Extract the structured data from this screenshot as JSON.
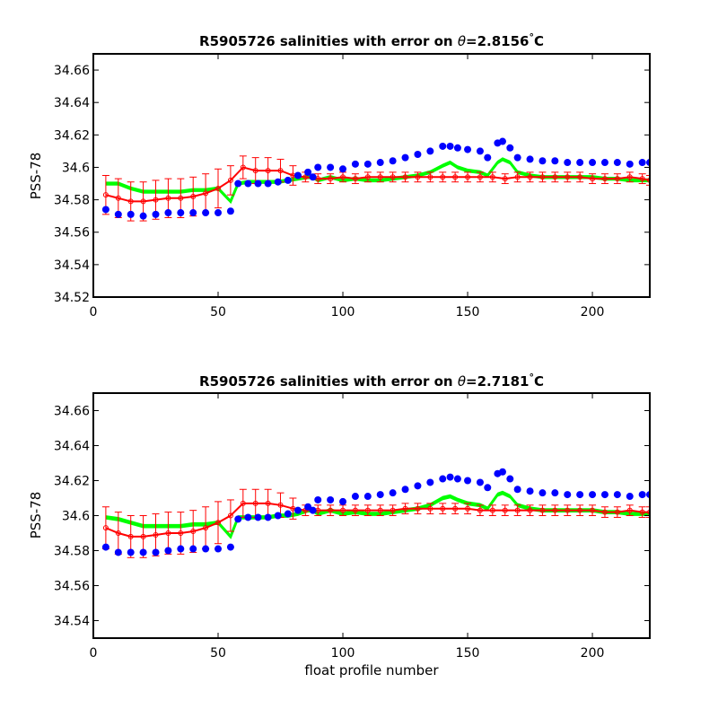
{
  "colors": {
    "blue": "#0000ff",
    "green": "#00ff00",
    "red": "#ff0000",
    "axis": "#000000"
  },
  "chart_data": [
    {
      "type": "line",
      "title_prefix": "R5905726 salinities with error on ",
      "theta_symbol": "θ",
      "title_value": "=2.8156",
      "title_degree": "°",
      "title_unit": "C",
      "xlabel": "",
      "ylabel": "PSS-78",
      "xlim": [
        0,
        223
      ],
      "ylim": [
        34.52,
        34.67
      ],
      "xticks": [
        0,
        50,
        100,
        150,
        200
      ],
      "xtick_labels": [
        "0",
        "50",
        "100",
        "150",
        "200"
      ],
      "yticks": [
        34.52,
        34.54,
        34.56,
        34.58,
        34.6,
        34.62,
        34.64,
        34.66
      ],
      "ytick_labels": [
        "34.52",
        "34.54",
        "34.56",
        "34.58",
        "34.6",
        "34.62",
        "34.64",
        "34.66"
      ],
      "series": [
        {
          "color": "#0000ff",
          "style": "markers",
          "x": [
            5,
            10,
            15,
            20,
            25,
            30,
            35,
            40,
            45,
            50,
            55,
            58,
            62,
            66,
            70,
            74,
            78,
            82,
            86,
            88,
            90,
            95,
            100,
            105,
            110,
            115,
            120,
            125,
            130,
            135,
            140,
            143,
            146,
            150,
            155,
            158,
            162,
            164,
            167,
            170,
            175,
            180,
            185,
            190,
            195,
            200,
            205,
            210,
            215,
            220,
            223
          ],
          "y": [
            34.574,
            34.571,
            34.571,
            34.57,
            34.571,
            34.572,
            34.572,
            34.572,
            34.572,
            34.572,
            34.573,
            34.59,
            34.59,
            34.59,
            34.59,
            34.591,
            34.592,
            34.595,
            34.597,
            34.594,
            34.6,
            34.6,
            34.599,
            34.602,
            34.602,
            34.603,
            34.604,
            34.606,
            34.608,
            34.61,
            34.613,
            34.613,
            34.612,
            34.611,
            34.61,
            34.606,
            34.615,
            34.616,
            34.612,
            34.606,
            34.605,
            34.604,
            34.604,
            34.603,
            34.603,
            34.603,
            34.603,
            34.603,
            34.602,
            34.603,
            34.603
          ]
        },
        {
          "color": "#00ff00",
          "style": "band",
          "x": [
            5,
            10,
            15,
            20,
            25,
            30,
            35,
            40,
            45,
            50,
            55,
            58,
            62,
            66,
            70,
            74,
            78,
            82,
            86,
            88,
            90,
            95,
            100,
            105,
            110,
            115,
            120,
            125,
            130,
            135,
            140,
            143,
            146,
            150,
            155,
            158,
            162,
            164,
            167,
            170,
            175,
            180,
            185,
            190,
            195,
            200,
            205,
            210,
            215,
            220,
            223
          ],
          "y": [
            34.59,
            34.59,
            34.587,
            34.585,
            34.585,
            34.585,
            34.585,
            34.586,
            34.586,
            34.587,
            34.579,
            34.59,
            34.591,
            34.591,
            34.591,
            34.591,
            34.592,
            34.593,
            34.594,
            34.594,
            34.592,
            34.594,
            34.592,
            34.593,
            34.592,
            34.592,
            34.593,
            34.594,
            34.595,
            34.597,
            34.601,
            34.603,
            34.6,
            34.598,
            34.597,
            34.595,
            34.603,
            34.605,
            34.603,
            34.597,
            34.595,
            34.594,
            34.594,
            34.594,
            34.594,
            34.594,
            34.593,
            34.593,
            34.592,
            34.592,
            34.592
          ]
        },
        {
          "color": "#ff0000",
          "style": "errorbar",
          "x": [
            5,
            10,
            15,
            20,
            25,
            30,
            35,
            40,
            45,
            50,
            55,
            60,
            65,
            70,
            75,
            80,
            85,
            90,
            95,
            100,
            105,
            110,
            115,
            120,
            125,
            130,
            135,
            140,
            145,
            150,
            155,
            160,
            165,
            170,
            175,
            180,
            185,
            190,
            195,
            200,
            205,
            210,
            215,
            220,
            223
          ],
          "y": [
            34.583,
            34.581,
            34.579,
            34.579,
            34.58,
            34.581,
            34.581,
            34.582,
            34.584,
            34.587,
            34.592,
            34.6,
            34.598,
            34.598,
            34.598,
            34.595,
            34.594,
            34.593,
            34.593,
            34.594,
            34.593,
            34.594,
            34.594,
            34.594,
            34.594,
            34.594,
            34.594,
            34.594,
            34.594,
            34.594,
            34.594,
            34.594,
            34.593,
            34.594,
            34.594,
            34.594,
            34.594,
            34.594,
            34.594,
            34.593,
            34.593,
            34.593,
            34.594,
            34.593,
            34.592
          ],
          "err": [
            0.012,
            0.012,
            0.012,
            0.012,
            0.012,
            0.012,
            0.012,
            0.012,
            0.012,
            0.012,
            0.009,
            0.007,
            0.008,
            0.008,
            0.007,
            0.006,
            0.003,
            0.003,
            0.003,
            0.003,
            0.003,
            0.003,
            0.003,
            0.003,
            0.003,
            0.003,
            0.003,
            0.003,
            0.003,
            0.003,
            0.003,
            0.003,
            0.003,
            0.003,
            0.003,
            0.003,
            0.003,
            0.003,
            0.003,
            0.003,
            0.003,
            0.003,
            0.003,
            0.003,
            0.003
          ]
        }
      ]
    },
    {
      "type": "line",
      "title_prefix": "R5905726 salinities with error on ",
      "theta_symbol": "θ",
      "title_value": "=2.7181",
      "title_degree": "°",
      "title_unit": "C",
      "xlabel": "float profile number",
      "ylabel": "PSS-78",
      "xlim": [
        0,
        223
      ],
      "ylim": [
        34.53,
        34.67
      ],
      "xticks": [
        0,
        50,
        100,
        150,
        200
      ],
      "xtick_labels": [
        "0",
        "50",
        "100",
        "150",
        "200"
      ],
      "yticks": [
        34.54,
        34.56,
        34.58,
        34.6,
        34.62,
        34.64,
        34.66
      ],
      "ytick_labels": [
        "34.54",
        "34.56",
        "34.58",
        "34.6",
        "34.62",
        "34.64",
        "34.66"
      ],
      "series": [
        {
          "color": "#0000ff",
          "style": "markers",
          "x": [
            5,
            10,
            15,
            20,
            25,
            30,
            35,
            40,
            45,
            50,
            55,
            58,
            62,
            66,
            70,
            74,
            78,
            82,
            86,
            88,
            90,
            95,
            100,
            105,
            110,
            115,
            120,
            125,
            130,
            135,
            140,
            143,
            146,
            150,
            155,
            158,
            162,
            164,
            167,
            170,
            175,
            180,
            185,
            190,
            195,
            200,
            205,
            210,
            215,
            220,
            223
          ],
          "y": [
            34.582,
            34.579,
            34.579,
            34.579,
            34.579,
            34.58,
            34.581,
            34.581,
            34.581,
            34.581,
            34.582,
            34.598,
            34.599,
            34.599,
            34.599,
            34.6,
            34.601,
            34.603,
            34.605,
            34.603,
            34.609,
            34.609,
            34.608,
            34.611,
            34.611,
            34.612,
            34.613,
            34.615,
            34.617,
            34.619,
            34.621,
            34.622,
            34.621,
            34.62,
            34.619,
            34.616,
            34.624,
            34.625,
            34.621,
            34.615,
            34.614,
            34.613,
            34.613,
            34.612,
            34.612,
            34.612,
            34.612,
            34.612,
            34.611,
            34.612,
            34.612
          ]
        },
        {
          "color": "#00ff00",
          "style": "band",
          "x": [
            5,
            10,
            15,
            20,
            25,
            30,
            35,
            40,
            45,
            50,
            55,
            58,
            62,
            66,
            70,
            74,
            78,
            82,
            86,
            88,
            90,
            95,
            100,
            105,
            110,
            115,
            120,
            125,
            130,
            135,
            140,
            143,
            146,
            150,
            155,
            158,
            162,
            164,
            167,
            170,
            175,
            180,
            185,
            190,
            195,
            200,
            205,
            210,
            215,
            220,
            223
          ],
          "y": [
            34.599,
            34.598,
            34.596,
            34.594,
            34.594,
            34.594,
            34.594,
            34.595,
            34.595,
            34.596,
            34.588,
            34.599,
            34.599,
            34.599,
            34.599,
            34.6,
            34.6,
            34.601,
            34.603,
            34.603,
            34.601,
            34.603,
            34.601,
            34.602,
            34.601,
            34.601,
            34.602,
            34.603,
            34.604,
            34.606,
            34.61,
            34.611,
            34.609,
            34.607,
            34.606,
            34.604,
            34.612,
            34.613,
            34.611,
            34.606,
            34.604,
            34.603,
            34.603,
            34.603,
            34.603,
            34.603,
            34.602,
            34.602,
            34.601,
            34.601,
            34.601
          ]
        },
        {
          "color": "#ff0000",
          "style": "errorbar",
          "x": [
            5,
            10,
            15,
            20,
            25,
            30,
            35,
            40,
            45,
            50,
            55,
            60,
            65,
            70,
            75,
            80,
            85,
            90,
            95,
            100,
            105,
            110,
            115,
            120,
            125,
            130,
            135,
            140,
            145,
            150,
            155,
            160,
            165,
            170,
            175,
            180,
            185,
            190,
            195,
            200,
            205,
            210,
            215,
            220,
            223
          ],
          "y": [
            34.593,
            34.59,
            34.588,
            34.588,
            34.589,
            34.59,
            34.59,
            34.591,
            34.593,
            34.596,
            34.6,
            34.607,
            34.607,
            34.607,
            34.606,
            34.604,
            34.603,
            34.603,
            34.603,
            34.603,
            34.603,
            34.603,
            34.603,
            34.603,
            34.604,
            34.604,
            34.604,
            34.604,
            34.604,
            34.604,
            34.603,
            34.603,
            34.603,
            34.603,
            34.603,
            34.603,
            34.603,
            34.603,
            34.603,
            34.603,
            34.602,
            34.602,
            34.603,
            34.602,
            34.602
          ],
          "err": [
            0.012,
            0.012,
            0.012,
            0.012,
            0.012,
            0.012,
            0.012,
            0.012,
            0.012,
            0.012,
            0.009,
            0.008,
            0.008,
            0.008,
            0.007,
            0.006,
            0.003,
            0.003,
            0.003,
            0.003,
            0.003,
            0.003,
            0.003,
            0.003,
            0.003,
            0.003,
            0.003,
            0.003,
            0.003,
            0.003,
            0.003,
            0.003,
            0.003,
            0.003,
            0.003,
            0.003,
            0.003,
            0.003,
            0.003,
            0.003,
            0.003,
            0.003,
            0.003,
            0.003,
            0.003
          ]
        }
      ]
    }
  ]
}
